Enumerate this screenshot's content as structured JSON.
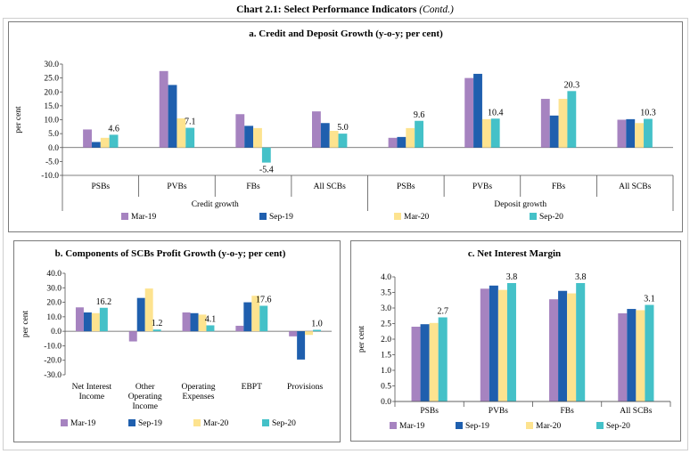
{
  "title": "Chart 2.1: Select Performance Indicators",
  "title_suffix": "(Contd.)",
  "chart_data": [
    {
      "id": "a",
      "type": "bar",
      "title": "a. Credit and Deposit Growth (y-o-y; per cent)",
      "ylabel": "per cent",
      "ylim": [
        -10,
        30
      ],
      "yticks": [
        -10,
        -5,
        0,
        5,
        10,
        15,
        20,
        25,
        30
      ],
      "ytick_labels": [
        "-10.0",
        "-5.0",
        "0.0",
        "5.0",
        "10.0",
        "15.0",
        "20.0",
        "25.0",
        "30.0"
      ],
      "categories": [
        "PSBs",
        "PVBs",
        "FBs",
        "All SCBs",
        "PSBs",
        "PVBs",
        "FBs",
        "All SCBs"
      ],
      "groups": [
        "Credit growth",
        "Deposit growth"
      ],
      "series": [
        {
          "name": "Mar-19",
          "color": "#a683c0",
          "values": [
            6.5,
            27.5,
            12.0,
            13.0,
            3.5,
            25.0,
            17.5,
            10.0
          ]
        },
        {
          "name": "Sep-19",
          "color": "#1f5fae",
          "values": [
            2.0,
            22.5,
            7.8,
            8.8,
            3.8,
            26.5,
            11.5,
            10.2
          ]
        },
        {
          "name": "Mar-20",
          "color": "#fde38f",
          "values": [
            3.5,
            10.5,
            7.0,
            6.0,
            7.0,
            10.2,
            17.5,
            8.8
          ]
        },
        {
          "name": "Sep-20",
          "color": "#44c1c8",
          "values": [
            4.6,
            7.1,
            -5.4,
            5.0,
            9.6,
            10.4,
            20.3,
            10.3
          ]
        }
      ],
      "data_labels": [
        "4.6",
        "7.1",
        "-5.4",
        "5.0",
        "9.6",
        "10.4",
        "20.3",
        "10.3"
      ]
    },
    {
      "id": "b",
      "type": "bar",
      "title": "b. Components of SCBs Profit Growth (y-o-y; per cent)",
      "ylabel": "per cent",
      "ylim": [
        -30,
        40
      ],
      "yticks": [
        -30,
        -20,
        -10,
        0,
        10,
        20,
        30,
        40
      ],
      "ytick_labels": [
        "-30.0",
        "-20.0",
        "-10.0",
        "0.0",
        "10.0",
        "20.0",
        "30.0",
        "40.0"
      ],
      "categories": [
        [
          "Net Interest",
          "Income"
        ],
        [
          "Other",
          "Operating",
          "Income"
        ],
        [
          "Operating",
          "Expenses"
        ],
        [
          "EBPT"
        ],
        [
          "Provisions"
        ]
      ],
      "series": [
        {
          "name": "Mar-19",
          "color": "#a683c0",
          "values": [
            16.5,
            -7.0,
            13.0,
            3.8,
            -3.5
          ]
        },
        {
          "name": "Sep-19",
          "color": "#1f5fae",
          "values": [
            13.0,
            23.0,
            12.5,
            20.0,
            -19.5
          ]
        },
        {
          "name": "Mar-20",
          "color": "#fde38f",
          "values": [
            12.5,
            29.5,
            11.5,
            24.5,
            -2.5
          ]
        },
        {
          "name": "Sep-20",
          "color": "#44c1c8",
          "values": [
            16.2,
            1.2,
            4.1,
            17.6,
            1.0
          ]
        }
      ],
      "data_labels": [
        "16.2",
        "1.2",
        "4.1",
        "17.6",
        "1.0"
      ]
    },
    {
      "id": "c",
      "type": "bar",
      "title": "c. Net Interest Margin",
      "ylabel": "per cent",
      "ylim": [
        0,
        4
      ],
      "yticks": [
        0,
        0.5,
        1,
        1.5,
        2,
        2.5,
        3,
        3.5,
        4
      ],
      "ytick_labels": [
        "0.0",
        "0.5",
        "1.0",
        "1.5",
        "2.0",
        "2.5",
        "3.0",
        "3.5",
        "4.0"
      ],
      "categories": [
        "PSBs",
        "PVBs",
        "FBs",
        "All SCBs"
      ],
      "series": [
        {
          "name": "Mar-19",
          "color": "#a683c0",
          "values": [
            2.4,
            3.62,
            3.28,
            2.83
          ]
        },
        {
          "name": "Sep-19",
          "color": "#1f5fae",
          "values": [
            2.48,
            3.72,
            3.55,
            2.97
          ]
        },
        {
          "name": "Mar-20",
          "color": "#fde38f",
          "values": [
            2.52,
            3.58,
            3.47,
            2.93
          ]
        },
        {
          "name": "Sep-20",
          "color": "#44c1c8",
          "values": [
            2.7,
            3.8,
            3.8,
            3.1
          ]
        }
      ],
      "data_labels": [
        "2.7",
        "3.8",
        "3.8",
        "3.1"
      ]
    }
  ]
}
